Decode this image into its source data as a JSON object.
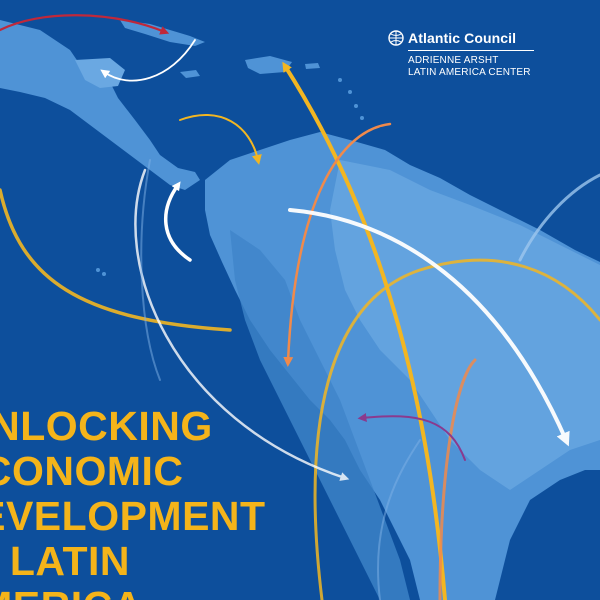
{
  "logo": {
    "name": "Atlantic Council",
    "subtitle_line1": "ADRIENNE ARSHT",
    "subtitle_line2": "LATIN AMERICA CENTER"
  },
  "headline": {
    "line1": "UNLOCKING",
    "line2": "ECONOMIC",
    "line3": "DEVELOPMENT",
    "line4": "IN LATIN",
    "line5": "AMERICA"
  },
  "colors": {
    "ocean": "#0d4f9c",
    "land": "#4f93d6",
    "land_light": "#6aa8e2",
    "headline": "#f4b41a",
    "arrow_yellow": "#f2b622",
    "arrow_orange": "#f08a4b",
    "arrow_white": "#ffffff",
    "arrow_red": "#c0283a",
    "arrow_purple": "#8a3a8e"
  }
}
